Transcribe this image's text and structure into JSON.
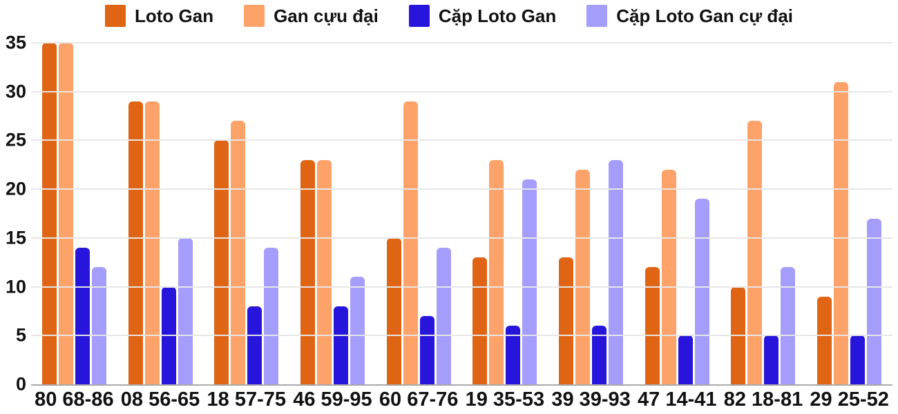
{
  "chart_data": {
    "type": "bar",
    "title": "",
    "xlabel": "",
    "ylabel": "",
    "categories": [
      "80 68-86",
      "08 56-65",
      "18 57-75",
      "46 59-95",
      "60 67-76",
      "19 35-53",
      "39 39-93",
      "47 14-41",
      "82 18-81",
      "29 25-52"
    ],
    "series": [
      {
        "name": "Loto Gan",
        "color": "#df6414",
        "values": [
          35,
          29,
          25,
          23,
          15,
          13,
          13,
          12,
          10,
          9
        ]
      },
      {
        "name": "Gan cựu đại",
        "color": "#fda269",
        "values": [
          35,
          29,
          27,
          23,
          29,
          23,
          22,
          22,
          27,
          31
        ]
      },
      {
        "name": "Cặp Loto Gan",
        "color": "#2715dc",
        "values": [
          14,
          10,
          8,
          8,
          7,
          6,
          6,
          5,
          5,
          5
        ]
      },
      {
        "name": "Cặp Loto Gan cự đại",
        "color": "#a49dfb",
        "values": [
          12,
          15,
          14,
          11,
          14,
          21,
          23,
          19,
          12,
          17
        ]
      }
    ],
    "ylim": [
      0,
      35
    ],
    "yticks": [
      0,
      5,
      10,
      15,
      20,
      25,
      30,
      35
    ],
    "grid": true,
    "legend_position": "top"
  },
  "colors": {
    "background": "#ffffff",
    "gridline": "#e6e6e6",
    "axis_line": "#a8a8a8",
    "text": "#111111"
  }
}
